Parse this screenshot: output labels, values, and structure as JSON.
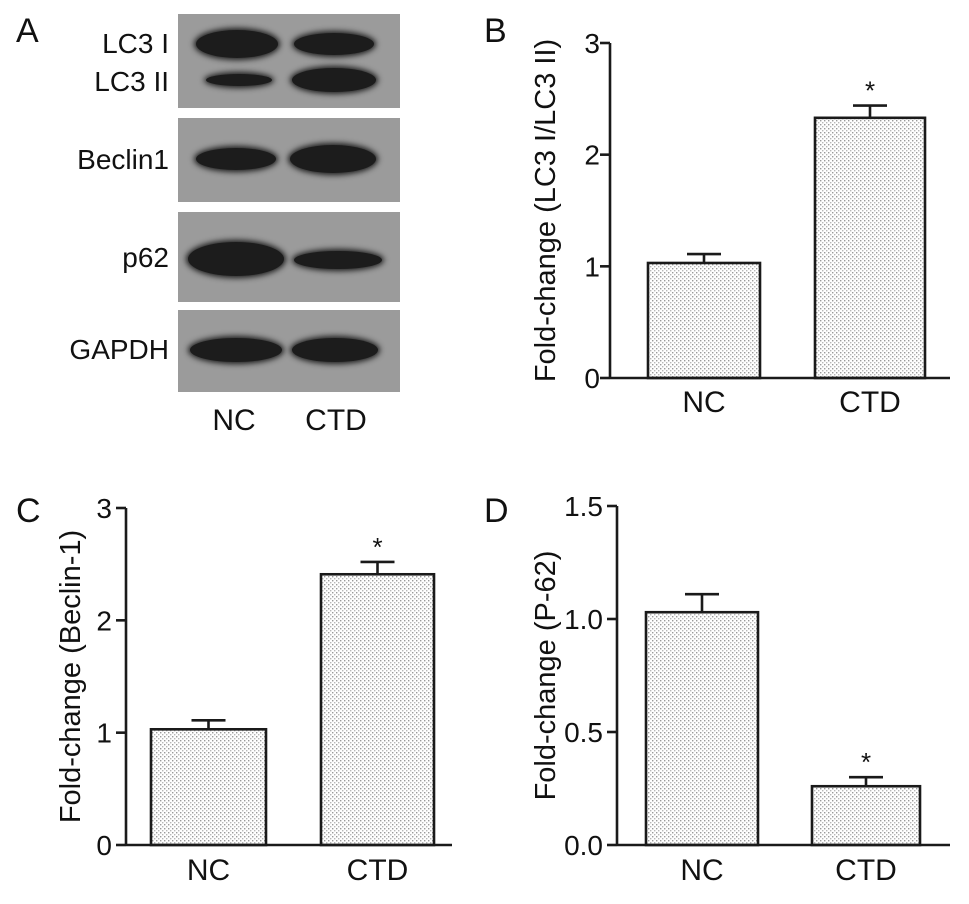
{
  "panels": {
    "a": "A",
    "b": "B",
    "c": "C",
    "d": "D"
  },
  "blot": {
    "proteins": [
      "LC3 I",
      "LC3 II",
      "Beclin1",
      "p62",
      "GAPDH"
    ],
    "lanes": [
      "NC",
      "CTD"
    ],
    "colors": {
      "strip": "#9b9b9b",
      "band": "#1c1c1c"
    }
  },
  "chart_data": [
    {
      "panel": "B",
      "type": "bar",
      "categories": [
        "NC",
        "CTD"
      ],
      "values": [
        1.03,
        2.33
      ],
      "errors": [
        0.08,
        0.11
      ],
      "significance": [
        "",
        "*"
      ],
      "ylabel": "Fold-change (LC3 I/LC3 II)",
      "ylim": [
        0,
        3
      ],
      "yticks": [
        "0",
        "1",
        "2",
        "3"
      ],
      "yticks_values": [
        0,
        1,
        2,
        3
      ],
      "grid": false
    },
    {
      "panel": "C",
      "type": "bar",
      "categories": [
        "NC",
        "CTD"
      ],
      "values": [
        1.03,
        2.41
      ],
      "errors": [
        0.08,
        0.11
      ],
      "significance": [
        "",
        "*"
      ],
      "ylabel": "Fold-change (Beclin-1)",
      "ylim": [
        0,
        3
      ],
      "yticks": [
        "0",
        "1",
        "2",
        "3"
      ],
      "yticks_values": [
        0,
        1,
        2,
        3
      ],
      "grid": false
    },
    {
      "panel": "D",
      "type": "bar",
      "categories": [
        "NC",
        "CTD"
      ],
      "values": [
        1.03,
        0.26
      ],
      "errors": [
        0.08,
        0.04
      ],
      "significance": [
        "",
        "*"
      ],
      "ylabel": "Fold-change (P-62)",
      "ylim": [
        0,
        1.5
      ],
      "yticks": [
        "0.0",
        "0.5",
        "1.0",
        "1.5"
      ],
      "yticks_values": [
        0,
        0.5,
        1.0,
        1.5
      ],
      "grid": false
    }
  ]
}
